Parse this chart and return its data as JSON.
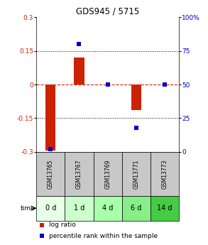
{
  "title": "GDS945 / 5715",
  "samples": [
    "GSM13765",
    "GSM13767",
    "GSM13769",
    "GSM13771",
    "GSM13773"
  ],
  "time_labels": [
    "0 d",
    "1 d",
    "4 d",
    "6 d",
    "14 d"
  ],
  "log_ratios": [
    -0.295,
    0.12,
    0.0,
    -0.115,
    0.0
  ],
  "percentile_ranks": [
    2.0,
    80.0,
    50.0,
    18.0,
    50.0
  ],
  "ylim_left": [
    -0.3,
    0.3
  ],
  "ylim_right": [
    0,
    100
  ],
  "yticks_left": [
    -0.3,
    -0.15,
    0,
    0.15,
    0.3
  ],
  "yticks_right": [
    0,
    25,
    50,
    75,
    100
  ],
  "bar_color": "#cc2200",
  "dot_color": "#0000cc",
  "zero_line_color": "#cc2200",
  "grid_color": "#000000",
  "sample_bg_color": "#c8c8c8",
  "time_bg_colors": [
    "#e8ffe8",
    "#ccffcc",
    "#aaffaa",
    "#88ee88",
    "#44cc44"
  ],
  "legend_bar_color": "#cc2200",
  "legend_dot_color": "#0000cc",
  "bar_width": 0.35
}
